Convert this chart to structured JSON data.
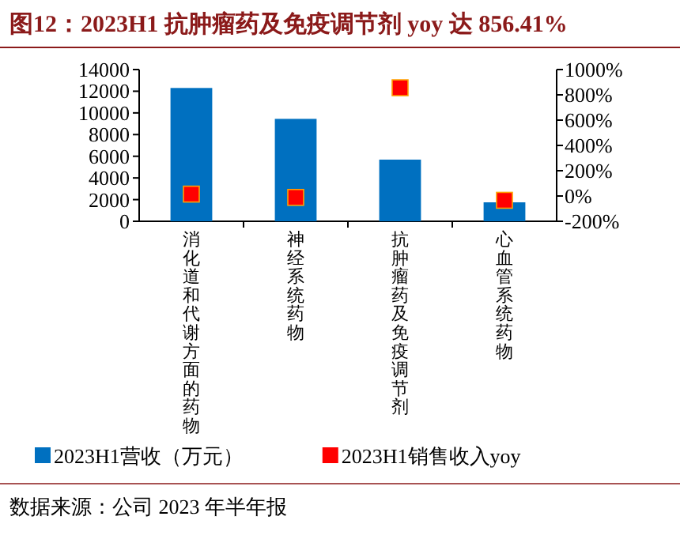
{
  "chart_data": {
    "type": "bar",
    "title": "图12：2023H1 抗肿瘤药及免疫调节剂 yoy 达 856.41%",
    "categories": [
      "消化道和代谢方面的药物",
      "神经系统药物",
      "抗肿瘤药及免疫调节剂",
      "心血管系统药物"
    ],
    "series": [
      {
        "name": "2023H1营收（万元）",
        "color": "#0070c0",
        "values": [
          12300,
          9450,
          5690,
          1750
        ]
      },
      {
        "name": "2023H1销售收入yoy",
        "type": "scatter",
        "axis": "y2",
        "color": "#ff0000",
        "marker": "square",
        "values": [
          15,
          -11,
          856,
          -34
        ]
      }
    ],
    "ylim": [
      0,
      14000
    ],
    "yticks": [
      0,
      2000,
      4000,
      6000,
      8000,
      10000,
      12000,
      14000
    ],
    "y2lim": [
      -200,
      1000
    ],
    "y2ticks": [
      {
        "value": -200,
        "label": "-200%"
      },
      {
        "value": 0,
        "label": "0%"
      },
      {
        "value": 200,
        "label": "200%"
      },
      {
        "value": 400,
        "label": "400%"
      },
      {
        "value": 600,
        "label": "600%"
      },
      {
        "value": 800,
        "label": "800%"
      },
      {
        "value": 1000,
        "label": "1000%"
      }
    ],
    "legend": "bottom",
    "grid": false,
    "annotations": [
      "数据来源：公司 2023 年半年报"
    ]
  }
}
